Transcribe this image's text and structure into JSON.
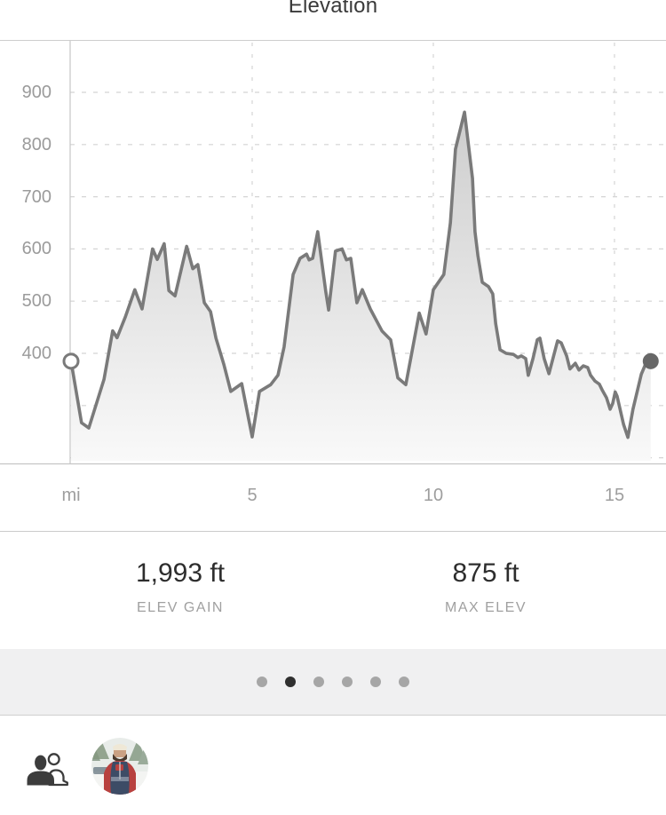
{
  "header": {
    "title": "Elevation"
  },
  "chart_data": {
    "type": "area",
    "title": "Elevation",
    "x_unit_label": "mi",
    "x_ticks": [
      5,
      10,
      15
    ],
    "y_ticks_labeled": [
      400,
      500,
      600,
      700,
      800,
      900
    ],
    "y_gridlines": [
      200,
      300,
      400,
      500,
      600,
      700,
      800,
      900
    ],
    "xlim": [
      0,
      16.4
    ],
    "ylim": [
      196,
      999
    ],
    "grid": true,
    "points": [
      [
        0.0,
        385
      ],
      [
        0.29,
        267
      ],
      [
        0.49,
        257
      ],
      [
        0.91,
        350
      ],
      [
        1.15,
        443
      ],
      [
        1.27,
        430
      ],
      [
        1.5,
        470
      ],
      [
        1.76,
        522
      ],
      [
        1.96,
        485
      ],
      [
        2.25,
        600
      ],
      [
        2.38,
        580
      ],
      [
        2.57,
        610
      ],
      [
        2.7,
        520
      ],
      [
        2.87,
        510
      ],
      [
        3.19,
        605
      ],
      [
        3.36,
        562
      ],
      [
        3.5,
        570
      ],
      [
        3.68,
        497
      ],
      [
        3.85,
        480
      ],
      [
        4.0,
        429
      ],
      [
        4.22,
        378
      ],
      [
        4.41,
        327
      ],
      [
        4.71,
        342
      ],
      [
        4.9,
        275
      ],
      [
        5.0,
        240
      ],
      [
        5.2,
        327
      ],
      [
        5.51,
        340
      ],
      [
        5.71,
        358
      ],
      [
        5.88,
        412
      ],
      [
        6.13,
        551
      ],
      [
        6.32,
        582
      ],
      [
        6.5,
        590
      ],
      [
        6.57,
        579
      ],
      [
        6.67,
        582
      ],
      [
        6.81,
        633
      ],
      [
        7.03,
        519
      ],
      [
        7.11,
        483
      ],
      [
        7.3,
        596
      ],
      [
        7.48,
        600
      ],
      [
        7.6,
        579
      ],
      [
        7.72,
        582
      ],
      [
        7.89,
        497
      ],
      [
        8.04,
        522
      ],
      [
        8.26,
        485
      ],
      [
        8.58,
        443
      ],
      [
        8.82,
        426
      ],
      [
        9.02,
        353
      ],
      [
        9.24,
        340
      ],
      [
        9.61,
        477
      ],
      [
        9.8,
        437
      ],
      [
        10.0,
        522
      ],
      [
        10.29,
        551
      ],
      [
        10.47,
        650
      ],
      [
        10.61,
        791
      ],
      [
        10.86,
        862
      ],
      [
        11.08,
        735
      ],
      [
        11.15,
        633
      ],
      [
        11.23,
        587
      ],
      [
        11.35,
        536
      ],
      [
        11.52,
        528
      ],
      [
        11.64,
        514
      ],
      [
        11.72,
        457
      ],
      [
        11.84,
        407
      ],
      [
        12.01,
        400
      ],
      [
        12.21,
        398
      ],
      [
        12.33,
        392
      ],
      [
        12.43,
        395
      ],
      [
        12.55,
        390
      ],
      [
        12.62,
        358
      ],
      [
        12.75,
        390
      ],
      [
        12.87,
        426
      ],
      [
        12.94,
        429
      ],
      [
        13.06,
        390
      ],
      [
        13.19,
        361
      ],
      [
        13.43,
        424
      ],
      [
        13.53,
        420
      ],
      [
        13.68,
        395
      ],
      [
        13.77,
        370
      ],
      [
        13.92,
        381
      ],
      [
        14.02,
        368
      ],
      [
        14.14,
        376
      ],
      [
        14.26,
        373
      ],
      [
        14.34,
        358
      ],
      [
        14.46,
        347
      ],
      [
        14.58,
        341
      ],
      [
        14.66,
        330
      ],
      [
        14.78,
        315
      ],
      [
        14.88,
        293
      ],
      [
        14.95,
        304
      ],
      [
        15.02,
        326
      ],
      [
        15.07,
        318
      ],
      [
        15.25,
        264
      ],
      [
        15.37,
        239
      ],
      [
        15.51,
        293
      ],
      [
        15.74,
        360
      ],
      [
        15.86,
        380
      ],
      [
        16.0,
        385
      ]
    ],
    "start_marker": {
      "mi": 0.0,
      "ft": 385,
      "style": "open-circle"
    },
    "end_marker": {
      "mi": 16.0,
      "ft": 385,
      "style": "filled-circle"
    },
    "colors": {
      "line": "#7a7a7a",
      "area_top": "#cdcdcd",
      "area_bottom": "#f9f9f9",
      "grid": "#d4d4d4",
      "axis": "#c6c6c6",
      "tick_label": "#9b9b9b",
      "start_marker_fill": "#ffffff",
      "end_marker_fill": "#676767"
    }
  },
  "stats": [
    {
      "value": "1,993 ft",
      "label": "ELEV GAIN"
    },
    {
      "value": "875 ft",
      "label": "MAX ELEV"
    }
  ],
  "pager": {
    "count": 6,
    "active_index": 1,
    "active_color": "#2f2f2f",
    "inactive_color": "#a6a6a6"
  },
  "footer": {
    "icons": [
      {
        "name": "people-icon"
      },
      {
        "name": "avatar-photo"
      }
    ]
  }
}
